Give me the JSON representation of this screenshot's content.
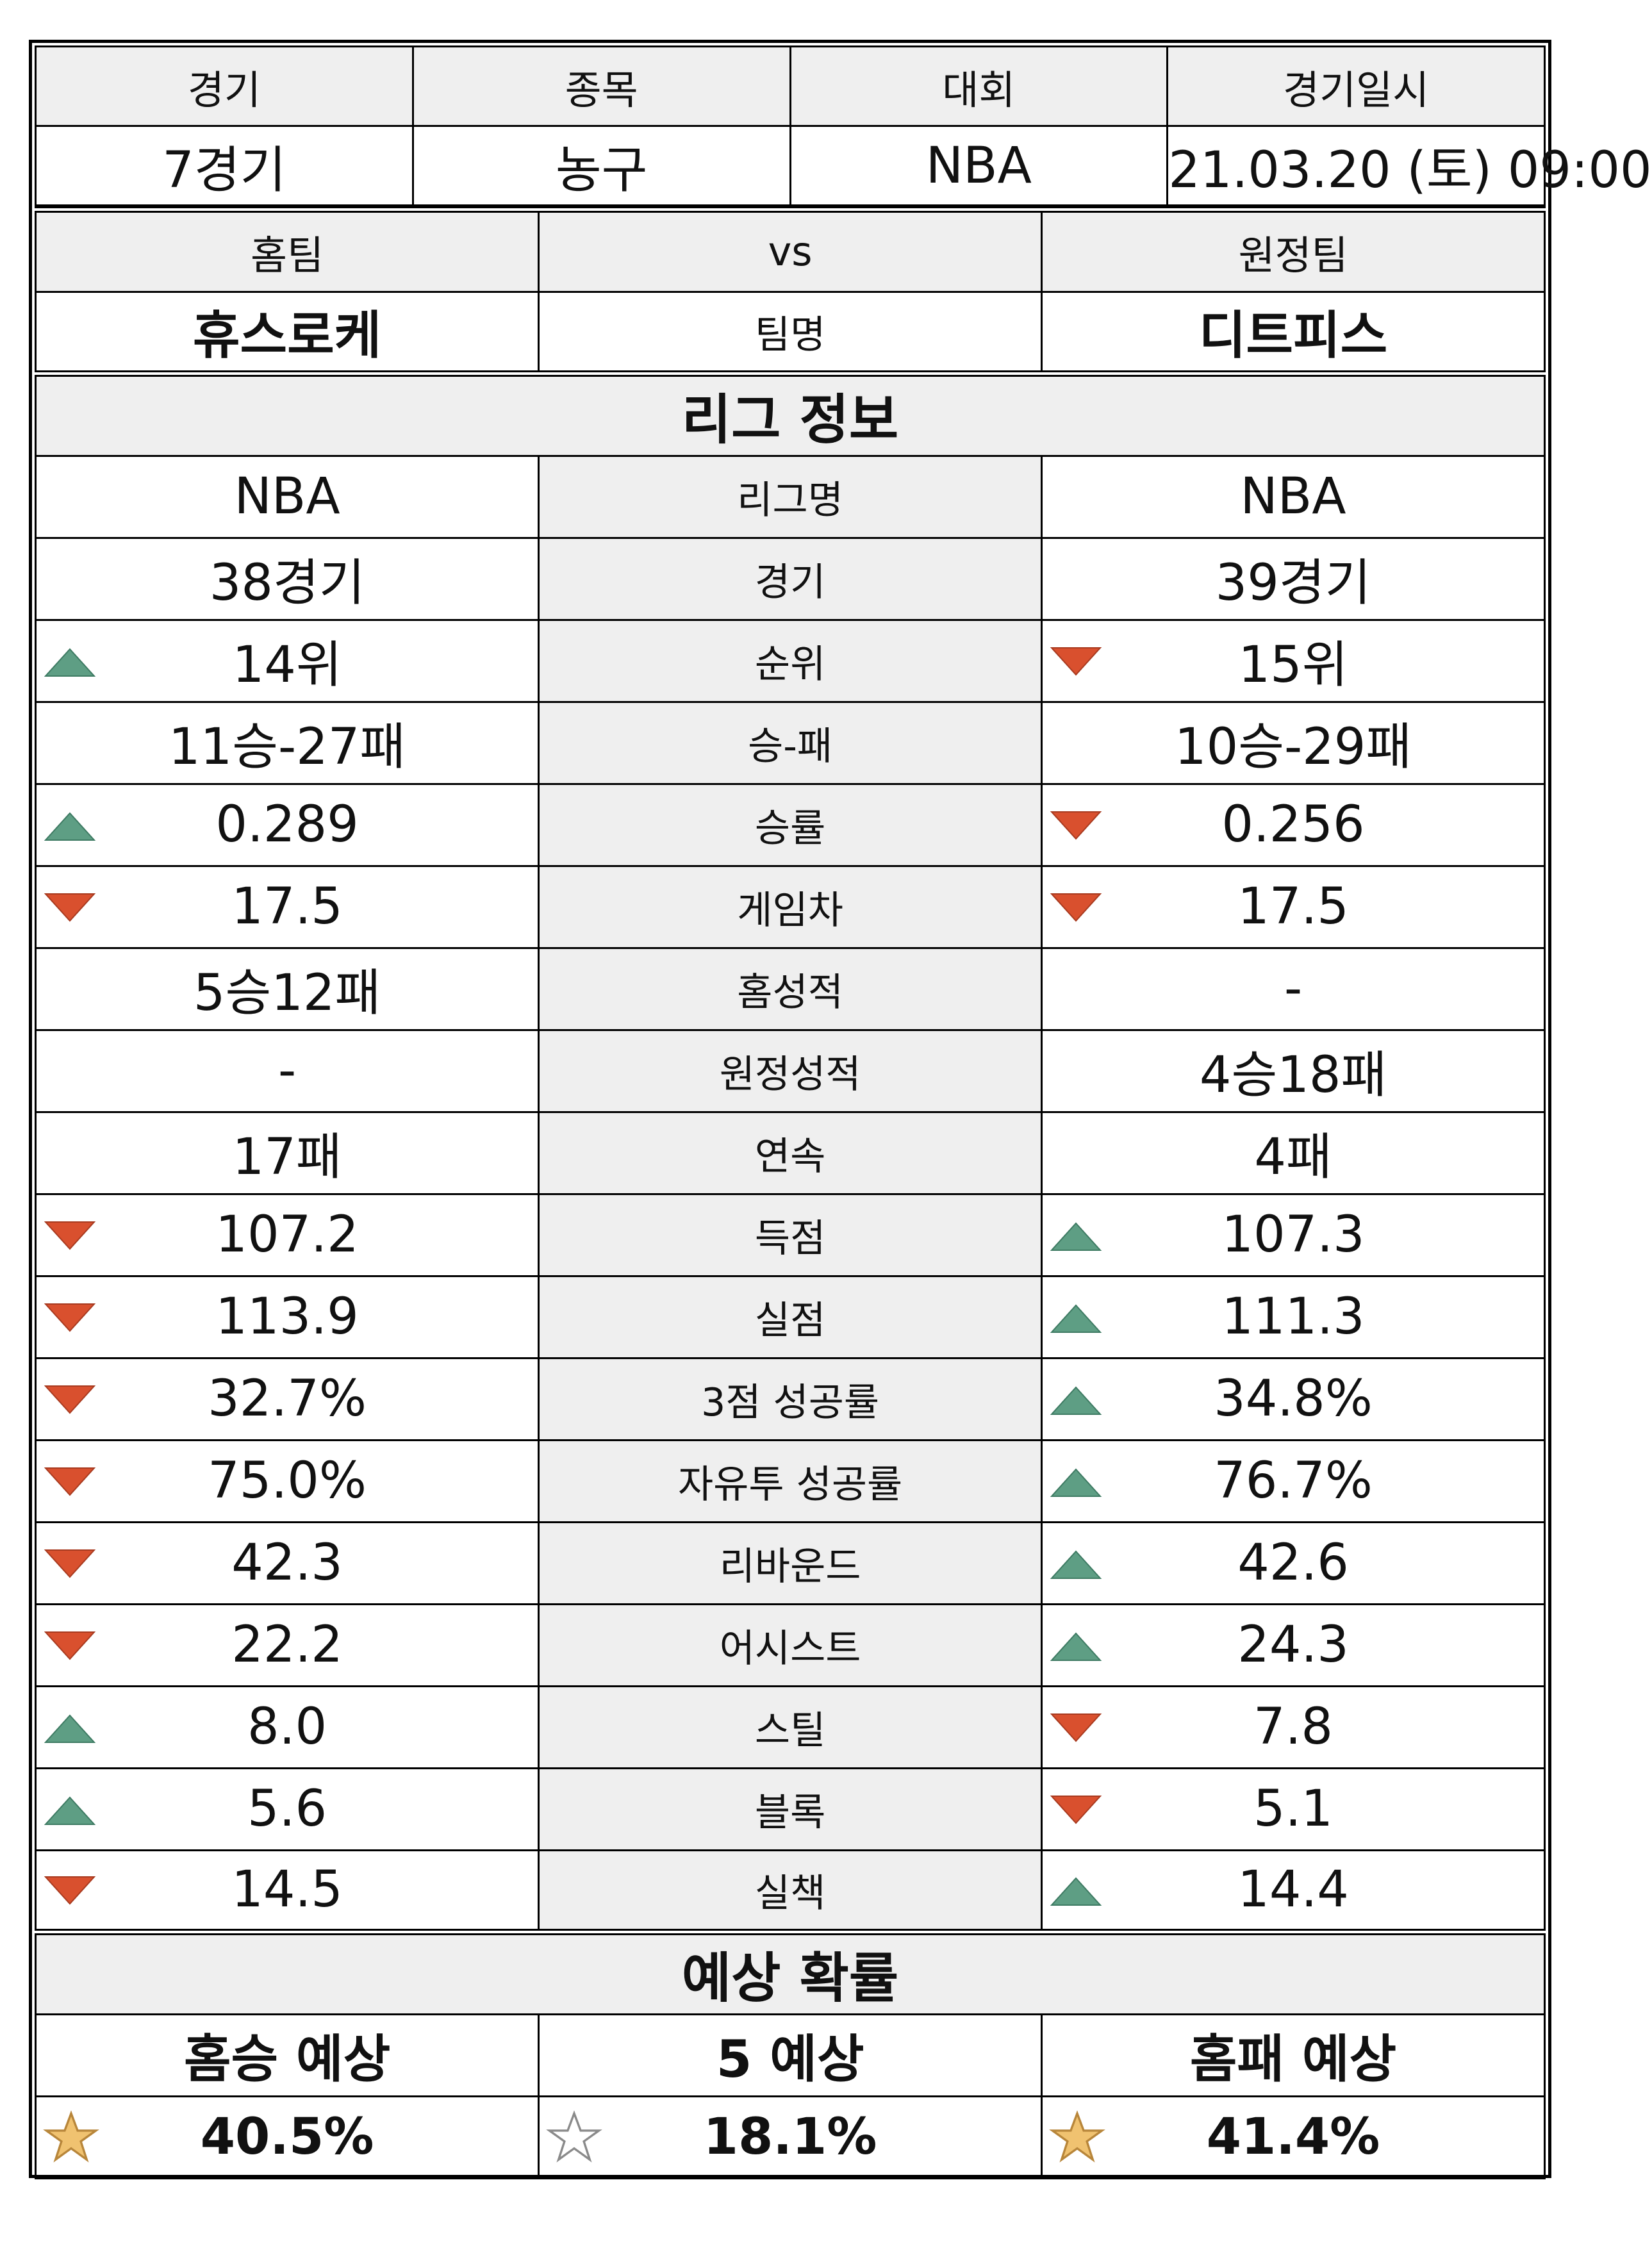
{
  "match": {
    "headers": [
      "경기",
      "종목",
      "대회",
      "경기일시"
    ],
    "values": [
      "7경기",
      "농구",
      "NBA",
      "21.03.20 (토) 09:00"
    ]
  },
  "teams": {
    "home_label": "홈팀",
    "vs_label": "vs",
    "away_label": "원정팀",
    "home_name": "휴스로케",
    "name_label": "팀명",
    "away_name": "디트피스"
  },
  "league": {
    "title": "리그 정보",
    "colors": {
      "up": "#5e9e84",
      "down": "#d9502e"
    },
    "rows": [
      {
        "label": "리그명",
        "home": "NBA",
        "away": "NBA",
        "home_mark": "",
        "away_mark": ""
      },
      {
        "label": "경기",
        "home": "38경기",
        "away": "39경기",
        "home_mark": "",
        "away_mark": ""
      },
      {
        "label": "순위",
        "home": "14위",
        "away": "15위",
        "home_mark": "up",
        "away_mark": "down"
      },
      {
        "label": "승-패",
        "home": "11승-27패",
        "away": "10승-29패",
        "home_mark": "",
        "away_mark": ""
      },
      {
        "label": "승률",
        "home": "0.289",
        "away": "0.256",
        "home_mark": "up",
        "away_mark": "down"
      },
      {
        "label": "게임차",
        "home": "17.5",
        "away": "17.5",
        "home_mark": "down",
        "away_mark": "down"
      },
      {
        "label": "홈성적",
        "home": "5승12패",
        "away": "-",
        "home_mark": "",
        "away_mark": ""
      },
      {
        "label": "원정성적",
        "home": "-",
        "away": "4승18패",
        "home_mark": "",
        "away_mark": ""
      },
      {
        "label": "연속",
        "home": "17패",
        "away": "4패",
        "home_mark": "",
        "away_mark": ""
      },
      {
        "label": "득점",
        "home": "107.2",
        "away": "107.3",
        "home_mark": "down",
        "away_mark": "up"
      },
      {
        "label": "실점",
        "home": "113.9",
        "away": "111.3",
        "home_mark": "down",
        "away_mark": "up"
      },
      {
        "label": "3점 성공률",
        "home": "32.7%",
        "away": "34.8%",
        "home_mark": "down",
        "away_mark": "up"
      },
      {
        "label": "자유투 성공률",
        "home": "75.0%",
        "away": "76.7%",
        "home_mark": "down",
        "away_mark": "up"
      },
      {
        "label": "리바운드",
        "home": "42.3",
        "away": "42.6",
        "home_mark": "down",
        "away_mark": "up"
      },
      {
        "label": "어시스트",
        "home": "22.2",
        "away": "24.3",
        "home_mark": "down",
        "away_mark": "up"
      },
      {
        "label": "스틸",
        "home": "8.0",
        "away": "7.8",
        "home_mark": "up",
        "away_mark": "down"
      },
      {
        "label": "블록",
        "home": "5.6",
        "away": "5.1",
        "home_mark": "up",
        "away_mark": "down"
      },
      {
        "label": "실책",
        "home": "14.5",
        "away": "14.4",
        "home_mark": "down",
        "away_mark": "up"
      }
    ]
  },
  "prediction": {
    "title": "예상 확률",
    "headers": [
      "홈승 예상",
      "5 예상",
      "홈패 예상"
    ],
    "values": [
      "40.5%",
      "18.1%",
      "41.4%"
    ],
    "stars": [
      "filled",
      "empty",
      "filled"
    ],
    "star_colors": {
      "filled": "#f0c270",
      "filled_stroke": "#b8863a",
      "empty": "#ffffff",
      "empty_stroke": "#8a8a8a"
    }
  }
}
